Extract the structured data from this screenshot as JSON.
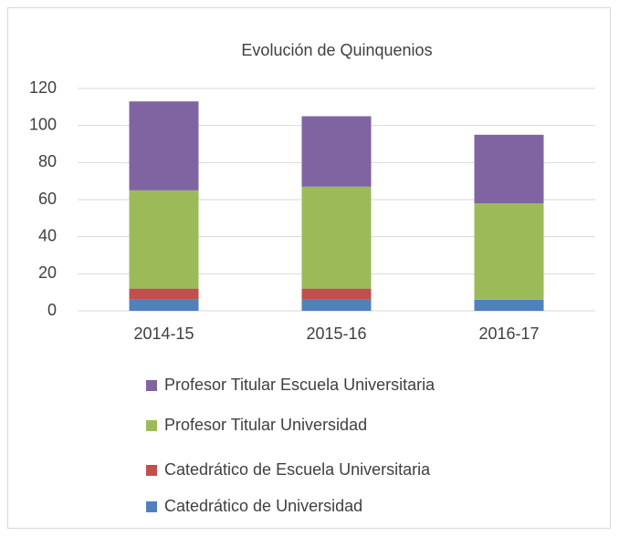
{
  "chart_data": {
    "type": "stacked_bar",
    "title": "Evolución de Quinquenios",
    "categories": [
      "2014-15",
      "2015-16",
      "2016-17"
    ],
    "series": [
      {
        "name": "Catedrático de Universidad",
        "color": "#4f81bd",
        "values": [
          6,
          6,
          6
        ]
      },
      {
        "name": "Catedrático de Escuela Universitaria",
        "color": "#c0504d",
        "values": [
          6,
          6,
          0
        ]
      },
      {
        "name": "Profesor Titular Universidad",
        "color": "#9bbb59",
        "values": [
          53,
          55,
          52
        ]
      },
      {
        "name": "Profesor Titular Escuela Universitaria",
        "color": "#8064a2",
        "values": [
          48,
          38,
          37
        ]
      }
    ],
    "ylim": [
      0,
      120
    ],
    "yticks": [
      0,
      20,
      40,
      60,
      80,
      100,
      120
    ],
    "grid": true,
    "legend": "bottom"
  }
}
